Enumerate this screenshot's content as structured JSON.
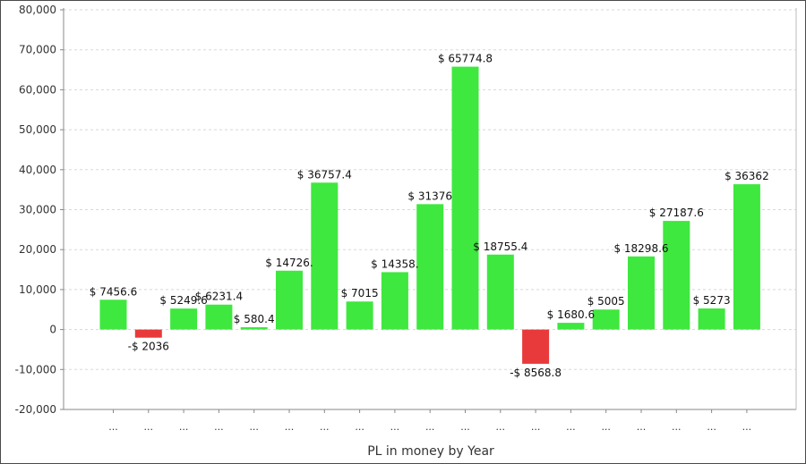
{
  "chart_data": {
    "type": "bar",
    "xlabel": "PL in money by Year",
    "ylabel": "",
    "ylim": [
      -20000,
      80000
    ],
    "y_ticks": [
      -20000,
      -10000,
      0,
      10000,
      20000,
      30000,
      40000,
      50000,
      60000,
      70000,
      80000
    ],
    "y_tick_labels": [
      "-20,000",
      "-10,000",
      "0",
      "10,000",
      "20,000",
      "30,000",
      "40,000",
      "50,000",
      "60,000",
      "70,000",
      "80,000"
    ],
    "grid": true,
    "legend": "none",
    "categories": [
      "...",
      "...",
      "...",
      "...",
      "...",
      "...",
      "...",
      "...",
      "...",
      "...",
      "...",
      "...",
      "...",
      "...",
      "...",
      "...",
      "...",
      "...",
      "..."
    ],
    "values": [
      7456.6,
      -2036,
      5249.6,
      6231.4,
      580.4,
      14726.2,
      36757.4,
      7015,
      14358.2,
      31376,
      65774.8,
      18755.4,
      -8568.8,
      1680.6,
      5005,
      18298.6,
      27187.6,
      5273,
      36362
    ],
    "data_labels": [
      "$ 7456.6",
      "-$ 2036",
      "$ 5249.6",
      "$ 6231.4",
      "$ 580.4",
      "$ 14726.",
      "$ 36757.4",
      "$ 7015",
      "$ 14358.",
      "$ 31376",
      "$ 65774.8",
      "$ 18755.4",
      "-$ 8568.8",
      "$ 1680.6",
      "$ 5005",
      "$ 18298.6",
      "$ 27187.6",
      "$ 5273",
      "$ 36362"
    ],
    "colors": {
      "positive": "#3ee83e",
      "negative": "#e83a3a",
      "grid": "#d8d8d8",
      "axis": "#888888",
      "frame": "#4a4a4a"
    }
  }
}
